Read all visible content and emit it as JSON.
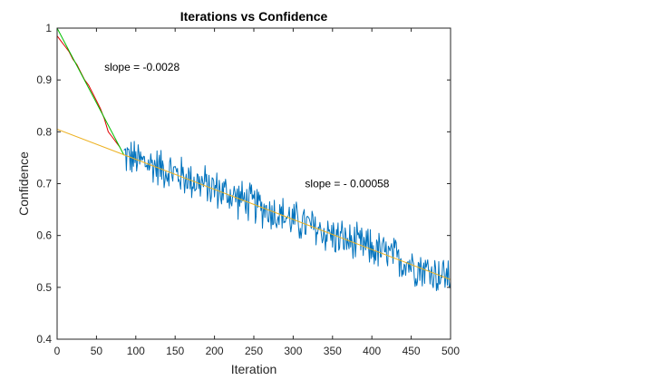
{
  "chart_data": {
    "type": "line",
    "title": "Iterations vs Confidence",
    "xlabel": "Iteration",
    "ylabel": "Confidence",
    "xlim": [
      0,
      500
    ],
    "ylim": [
      0.4,
      1
    ],
    "xticks": [
      "0",
      "50",
      "100",
      "150",
      "200",
      "250",
      "300",
      "350",
      "400",
      "450",
      "500"
    ],
    "yticks": [
      "0.4",
      "0.5",
      "0.6",
      "0.7",
      "0.8",
      "0.9",
      "1"
    ],
    "grid": false,
    "box": true,
    "series": [
      {
        "color": "#0072BD",
        "x": [
          85,
          100,
          125,
          150,
          175,
          200,
          225,
          250,
          275,
          300,
          325,
          350,
          375,
          400,
          425,
          450,
          475,
          500
        ],
        "y": [
          0.755,
          0.745,
          0.735,
          0.72,
          0.705,
          0.69,
          0.675,
          0.66,
          0.645,
          0.63,
          0.615,
          0.6,
          0.585,
          0.575,
          0.56,
          0.545,
          0.53,
          0.52
        ],
        "noise_amplitude": 0.045
      },
      {
        "color": "#E00000",
        "x": [
          0,
          5,
          10,
          15,
          20,
          25,
          30,
          35,
          40,
          45,
          50,
          55,
          60,
          65,
          70,
          75,
          80
        ],
        "y": [
          0.985,
          0.975,
          0.965,
          0.955,
          0.94,
          0.93,
          0.915,
          0.9,
          0.89,
          0.875,
          0.86,
          0.845,
          0.825,
          0.8,
          0.79,
          0.78,
          0.77
        ]
      },
      {
        "color": "#00C000",
        "x": [
          0,
          85
        ],
        "y": [
          1.0,
          0.755
        ]
      },
      {
        "color": "#EDB120",
        "x": [
          0,
          500
        ],
        "y": [
          0.805,
          0.515
        ]
      }
    ],
    "annotations": [
      {
        "text": "slope = -0.0028",
        "x": 60,
        "y": 0.918
      },
      {
        "text": "slope = - 0.00058",
        "x": 315,
        "y": 0.693
      }
    ]
  }
}
